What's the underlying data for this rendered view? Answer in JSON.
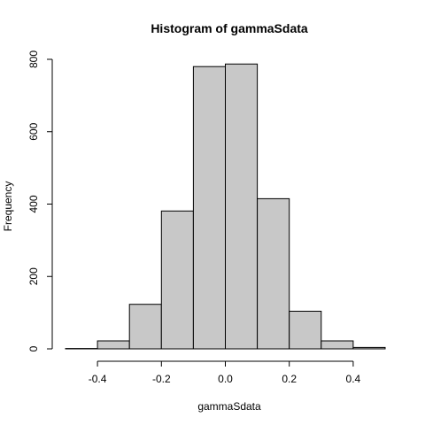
{
  "chart_data": {
    "type": "bar",
    "title": "Histogram of gammaSdata",
    "xlabel": "gammaSdata",
    "ylabel": "Frequency",
    "bin_edges": [
      -0.5,
      -0.4,
      -0.3,
      -0.2,
      -0.1,
      0.0,
      0.1,
      0.2,
      0.3,
      0.4,
      0.5
    ],
    "values": [
      1,
      22,
      123,
      381,
      780,
      787,
      415,
      104,
      22,
      4
    ],
    "xlim": [
      -0.5,
      0.5
    ],
    "ylim": [
      0,
      800
    ],
    "x_ticks": [
      -0.4,
      -0.2,
      0.0,
      0.2,
      0.4
    ],
    "x_tick_labels": [
      "-0.4",
      "-0.2",
      "0.0",
      "0.2",
      "0.4"
    ],
    "y_ticks": [
      0,
      200,
      400,
      600,
      800
    ],
    "y_tick_labels": [
      "0",
      "200",
      "400",
      "600",
      "800"
    ],
    "bar_color": "#c8c8c8",
    "grid": false
  }
}
